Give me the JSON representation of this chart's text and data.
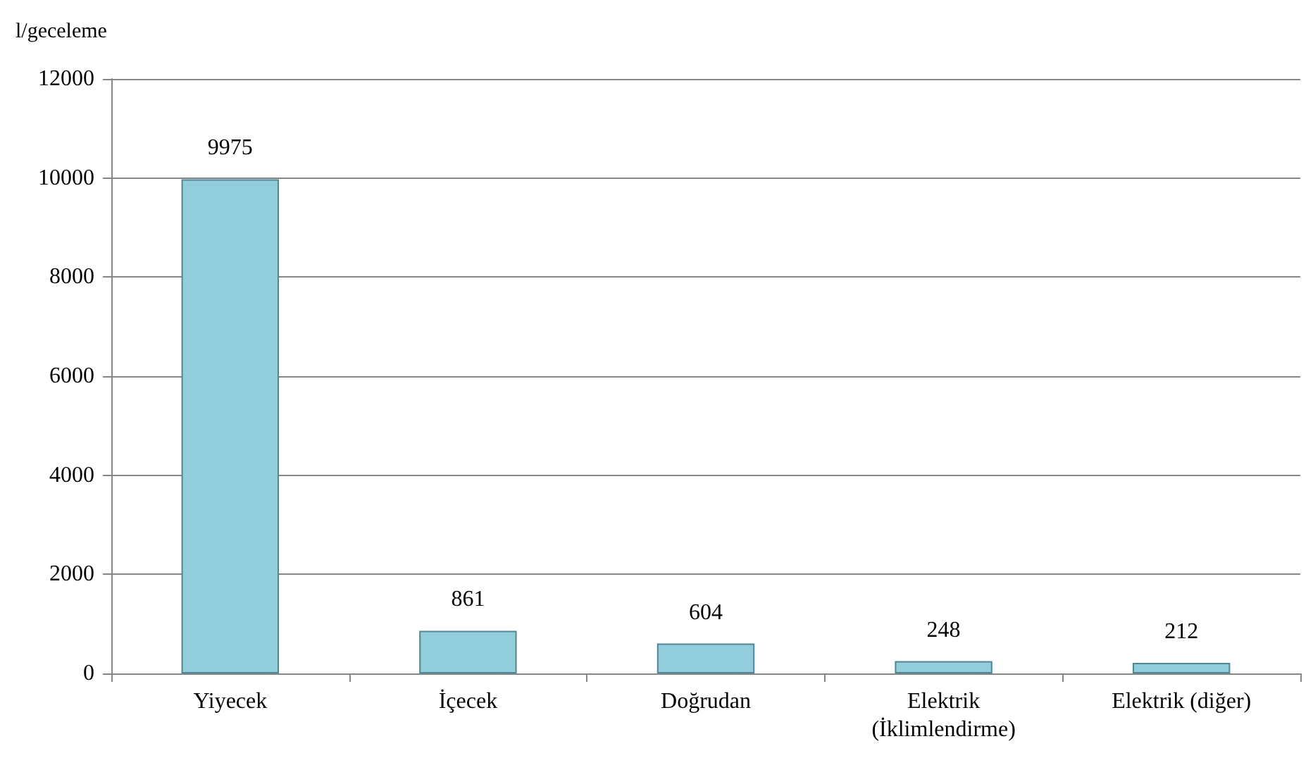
{
  "chart_data": {
    "type": "bar",
    "ylabel": "l/geceleme",
    "categories": [
      "Yiyecek",
      "İçecek",
      "Doğrudan",
      "Elektrik\n(İklimlendirme)",
      "Elektrik (diğer)"
    ],
    "values": [
      9975,
      861,
      604,
      248,
      212
    ],
    "color": "#92cddc",
    "ylim": [
      0,
      12000
    ],
    "yticks": [
      0,
      2000,
      4000,
      6000,
      8000,
      10000,
      12000
    ],
    "grid": "y",
    "data_labels": true
  }
}
